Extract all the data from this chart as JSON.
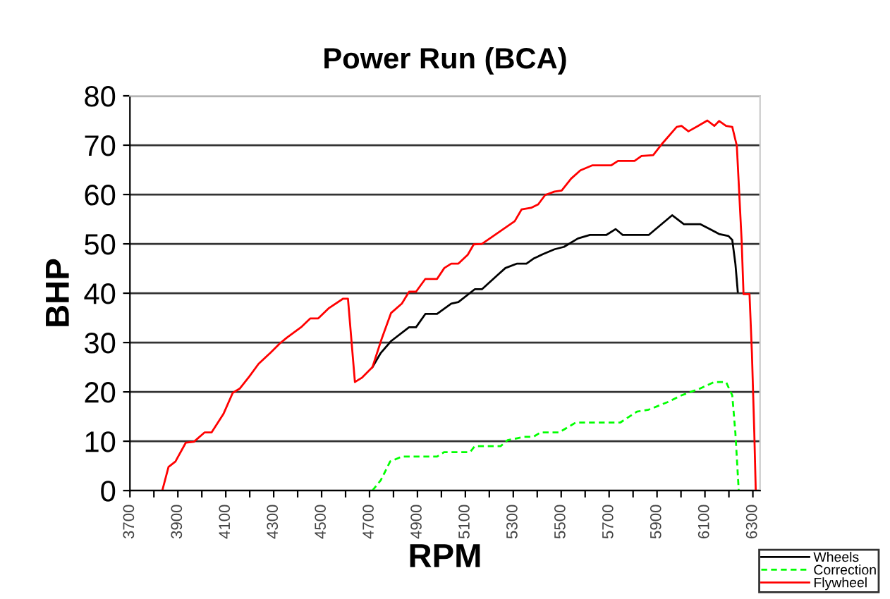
{
  "chart_data": {
    "type": "line",
    "title": "Power Run (BCA)",
    "xlabel": "RPM",
    "ylabel": "BHP",
    "xlim": [
      3700,
      6330
    ],
    "ylim": [
      0,
      80
    ],
    "xticks": [
      3700,
      {
        "value": 3800,
        "label": null
      },
      3900,
      {
        "value": 4000,
        "label": null
      },
      4100,
      {
        "value": 4200,
        "label": null
      },
      4300,
      {
        "value": 4400,
        "label": null
      },
      4500,
      {
        "value": 4600,
        "label": null
      },
      4700,
      {
        "value": 4800,
        "label": null
      },
      4900,
      {
        "value": 5000,
        "label": null
      },
      5100,
      {
        "value": 5200,
        "label": null
      },
      5300,
      {
        "value": 5400,
        "label": null
      },
      5500,
      {
        "value": 5600,
        "label": null
      },
      5700,
      {
        "value": 5800,
        "label": null
      },
      5900,
      {
        "value": 6000,
        "label": null
      },
      6100,
      {
        "value": 6200,
        "label": null
      },
      6300
    ],
    "yticks": [
      0,
      10,
      20,
      30,
      40,
      50,
      60,
      70,
      80
    ],
    "grid": "y",
    "legend": "bottom right",
    "marker": "none",
    "series": [
      {
        "name": "Wheels",
        "color": "#000000",
        "line_style": "solid",
        "x": [
          4712,
          4747,
          4790,
          4865,
          4894,
          4933,
          4982,
          5041,
          5071,
          5139,
          5169,
          5237,
          5267,
          5316,
          5355,
          5384,
          5423,
          5472,
          5512,
          5570,
          5620,
          5688,
          5727,
          5757,
          5865,
          5963,
          6012,
          6080,
          6120,
          6159,
          6198,
          6214,
          6227,
          6237
        ],
        "values": [
          25,
          27.9,
          30.3,
          33.1,
          33.1,
          35.8,
          35.8,
          37.9,
          38.2,
          40.8,
          40.8,
          43.8,
          45.1,
          46,
          46,
          47,
          47.9,
          48.9,
          49.4,
          51.1,
          51.8,
          51.8,
          53,
          51.8,
          51.8,
          55.8,
          54,
          54,
          53,
          52,
          51.6,
          50.8,
          46,
          40.3
        ]
      },
      {
        "name": "Correction",
        "color": "#00ff00",
        "line_style": "dashed",
        "x": [
          4712,
          4747,
          4786,
          4835,
          4982,
          5012,
          5120,
          5139,
          5247,
          5276,
          5345,
          5384,
          5414,
          5492,
          5561,
          5747,
          5816,
          5865,
          5943,
          6002,
          6080,
          6139,
          6188,
          6214,
          6227,
          6241
        ],
        "values": [
          0,
          2.1,
          5.9,
          6.9,
          6.9,
          7.8,
          7.8,
          9,
          9,
          10.2,
          10.9,
          10.9,
          11.8,
          11.8,
          13.8,
          13.8,
          16,
          16.4,
          17.9,
          19.3,
          20.7,
          22,
          22,
          19.3,
          11.7,
          0
        ]
      },
      {
        "name": "Flywheel",
        "color": "#ff0000",
        "line_style": "solid",
        "x": [
          3835,
          3861,
          3890,
          3933,
          3967,
          4012,
          4041,
          4090,
          4129,
          4159,
          4198,
          4237,
          4286,
          4325,
          4355,
          4414,
          4453,
          4486,
          4531,
          4590,
          4610,
          4639,
          4669,
          4712,
          4751,
          4790,
          4835,
          4865,
          4894,
          4933,
          4982,
          5012,
          5041,
          5071,
          5110,
          5135,
          5169,
          5306,
          5335,
          5374,
          5404,
          5433,
          5472,
          5502,
          5541,
          5580,
          5629,
          5708,
          5737,
          5806,
          5835,
          5884,
          5923,
          5982,
          6002,
          6031,
          6071,
          6110,
          6139,
          6159,
          6188,
          6214,
          6233,
          6253,
          6261,
          6286,
          6296,
          6306,
          6312
        ],
        "values": [
          0,
          4.8,
          5.9,
          9.7,
          9.9,
          11.8,
          11.8,
          15.5,
          19.8,
          20.7,
          23.1,
          25.7,
          27.9,
          29.8,
          31,
          33.1,
          34.9,
          34.9,
          37,
          38.9,
          38.9,
          22,
          22.9,
          25,
          30.8,
          36,
          37.9,
          40.3,
          40.3,
          42.9,
          42.9,
          45.1,
          46,
          46,
          47.8,
          49.9,
          50,
          54.6,
          57,
          57.3,
          58,
          59.9,
          60.6,
          60.8,
          63.2,
          64.9,
          65.9,
          65.9,
          66.8,
          66.8,
          67.8,
          68,
          70.4,
          73.7,
          73.9,
          72.8,
          73.9,
          75,
          73.9,
          74.9,
          73.9,
          73.7,
          69.9,
          50.8,
          39.8,
          39.8,
          27.9,
          11.7,
          0
        ]
      }
    ]
  }
}
